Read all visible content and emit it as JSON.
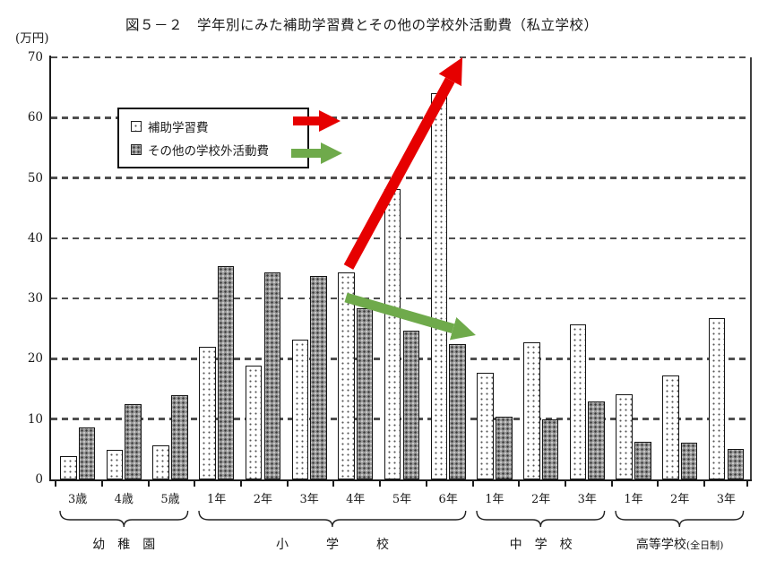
{
  "title": "図５－２　学年別にみた補助学習費とその他の学校外活動費（私立学校）",
  "y_axis": {
    "unit_label": "(万円)",
    "ticks": [
      0,
      10,
      20,
      30,
      40,
      50,
      60,
      70
    ],
    "max": 70
  },
  "legend": {
    "items": [
      {
        "label": "補助学習費",
        "swatch": "white-dotted"
      },
      {
        "label": "その他の学校外活動費",
        "swatch": "gray-dotted"
      }
    ]
  },
  "chart_data": {
    "type": "bar",
    "title": "図５－２　学年別にみた補助学習費とその他の学校外活動費（私立学校）",
    "ylabel": "(万円)",
    "ylim": [
      0,
      70
    ],
    "grid": "dashed-horizontal",
    "legend_position": "upper-left-inside",
    "categories": [
      "3歳",
      "4歳",
      "5歳",
      "1年",
      "2年",
      "3年",
      "4年",
      "5年",
      "6年",
      "1年",
      "2年",
      "3年",
      "1年",
      "2年",
      "3年"
    ],
    "sections": [
      {
        "label": "幼　稚　園",
        "span": [
          0,
          2
        ]
      },
      {
        "label": "小　　　学　　　校",
        "span": [
          3,
          8
        ]
      },
      {
        "label": "中　学　校",
        "span": [
          9,
          11
        ]
      },
      {
        "label": "高等学校",
        "sub": "(全日制)",
        "span": [
          12,
          14
        ]
      }
    ],
    "series": [
      {
        "name": "補助学習費",
        "values": [
          3.9,
          4.9,
          5.7,
          22.0,
          18.9,
          23.2,
          34.3,
          48.1,
          64.0,
          17.7,
          22.7,
          25.7,
          14.1,
          17.3,
          26.7
        ]
      },
      {
        "name": "その他の学校外活動費",
        "values": [
          8.6,
          12.5,
          14.0,
          35.4,
          34.3,
          33.7,
          28.4,
          24.7,
          22.5,
          10.4,
          10.0,
          12.9,
          6.3,
          6.1,
          5.0
        ]
      }
    ]
  },
  "annotations": {
    "arrows": [
      {
        "name": "legend-red-arrow",
        "color": "#e60000",
        "weight": 10,
        "from": [
          327,
          135
        ],
        "to": [
          380,
          135
        ]
      },
      {
        "name": "legend-green-arrow",
        "color": "#6faa4b",
        "weight": 10,
        "from": [
          325,
          171
        ],
        "to": [
          382,
          171
        ]
      },
      {
        "name": "trend-up-red-arrow",
        "color": "#e60000",
        "weight": 12,
        "from": [
          389,
          298
        ],
        "to": [
          516,
          64
        ]
      },
      {
        "name": "trend-down-green-arrow",
        "color": "#6faa4b",
        "weight": 11,
        "from": [
          386,
          332
        ],
        "to": [
          531,
          374
        ]
      }
    ]
  },
  "colors": {
    "arrow_red": "#e60000",
    "arrow_green": "#6faa4b",
    "grid_line": "#4f4f4f",
    "axis": "#1c1c1c",
    "bar_light_fill": "#ffffff",
    "bar_dark_fill": "#9a9a9a",
    "bar_border": "#141414",
    "text": "#1a1a1a"
  }
}
